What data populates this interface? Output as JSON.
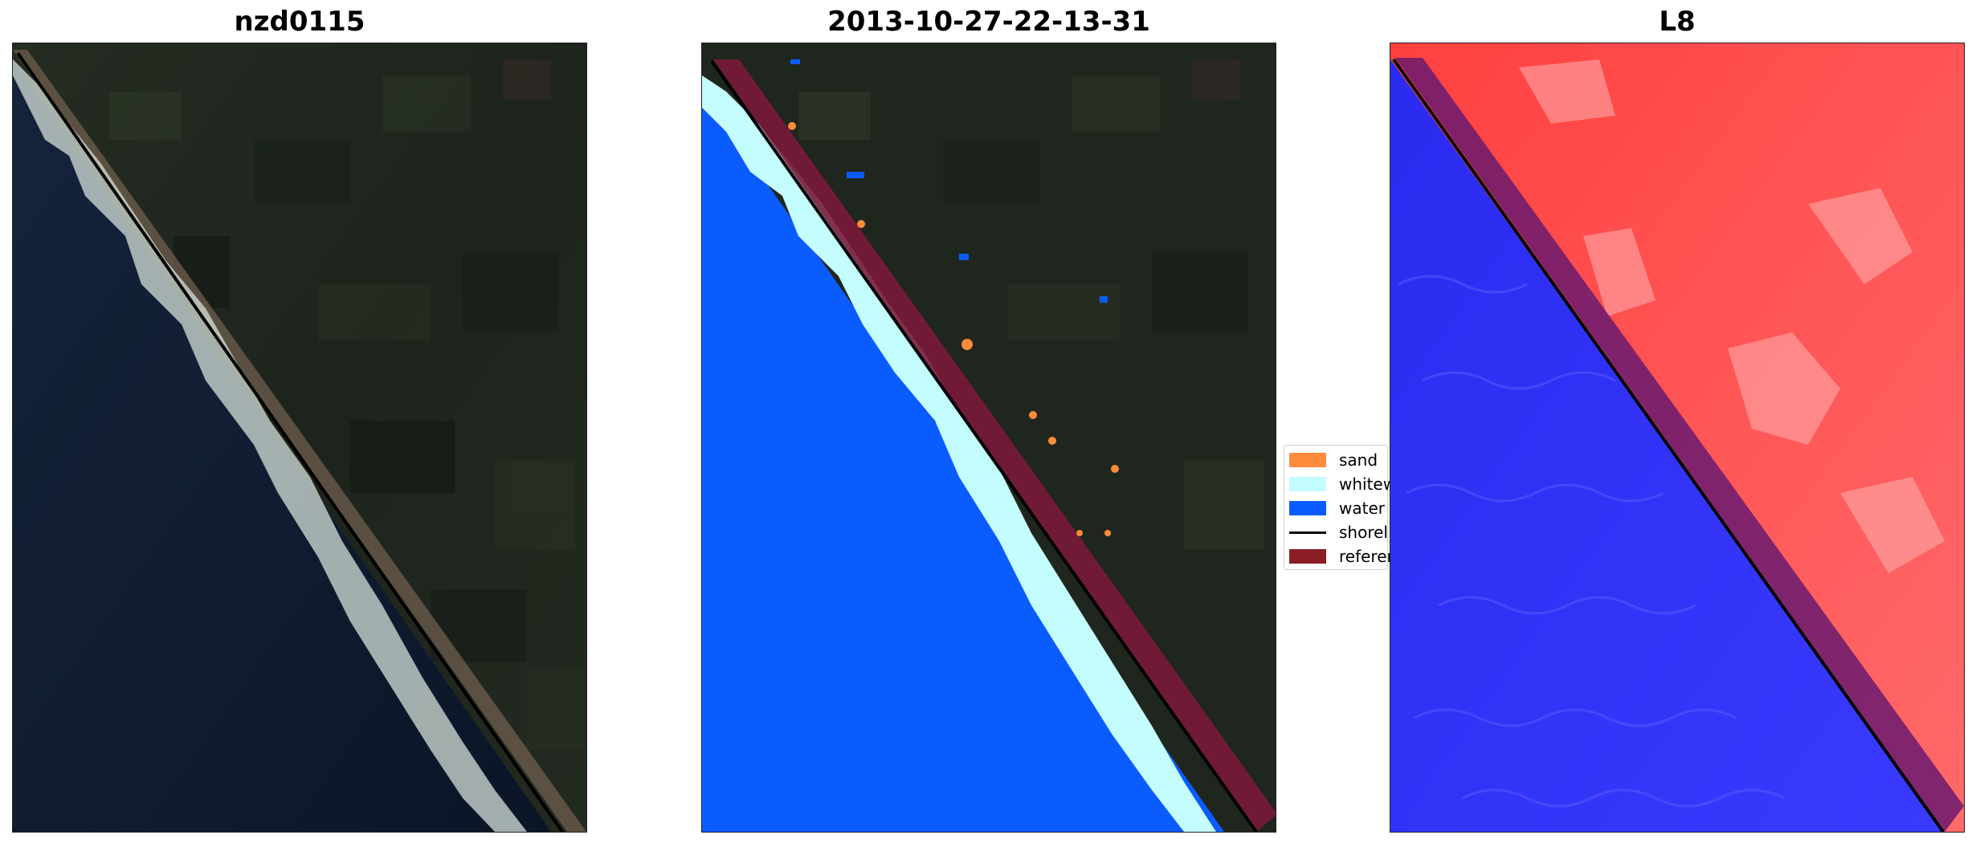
{
  "panels": [
    {
      "title": "nzd0115"
    },
    {
      "title": "2013-10-27-22-13-31"
    },
    {
      "title": "L8"
    }
  ],
  "legend": {
    "items": [
      {
        "label": "sand",
        "color": "#ff8c3a",
        "kind": "patch"
      },
      {
        "label": "whitew",
        "color": "#c4fdfd",
        "kind": "patch"
      },
      {
        "label": "water",
        "color": "#0b5cff",
        "kind": "patch"
      },
      {
        "label": "shorel",
        "color": "#000000",
        "kind": "line"
      },
      {
        "label": "referer",
        "color": "#8b1d24",
        "kind": "patch"
      }
    ]
  },
  "colors": {
    "land_dark": "#1c251c",
    "ocean_dark": "#0e1a2e",
    "classified_water": "#0b5cff",
    "reference_band": "#7a1a3a",
    "l8_land": "#ff4a4a",
    "l8_water": "#2222e0"
  }
}
